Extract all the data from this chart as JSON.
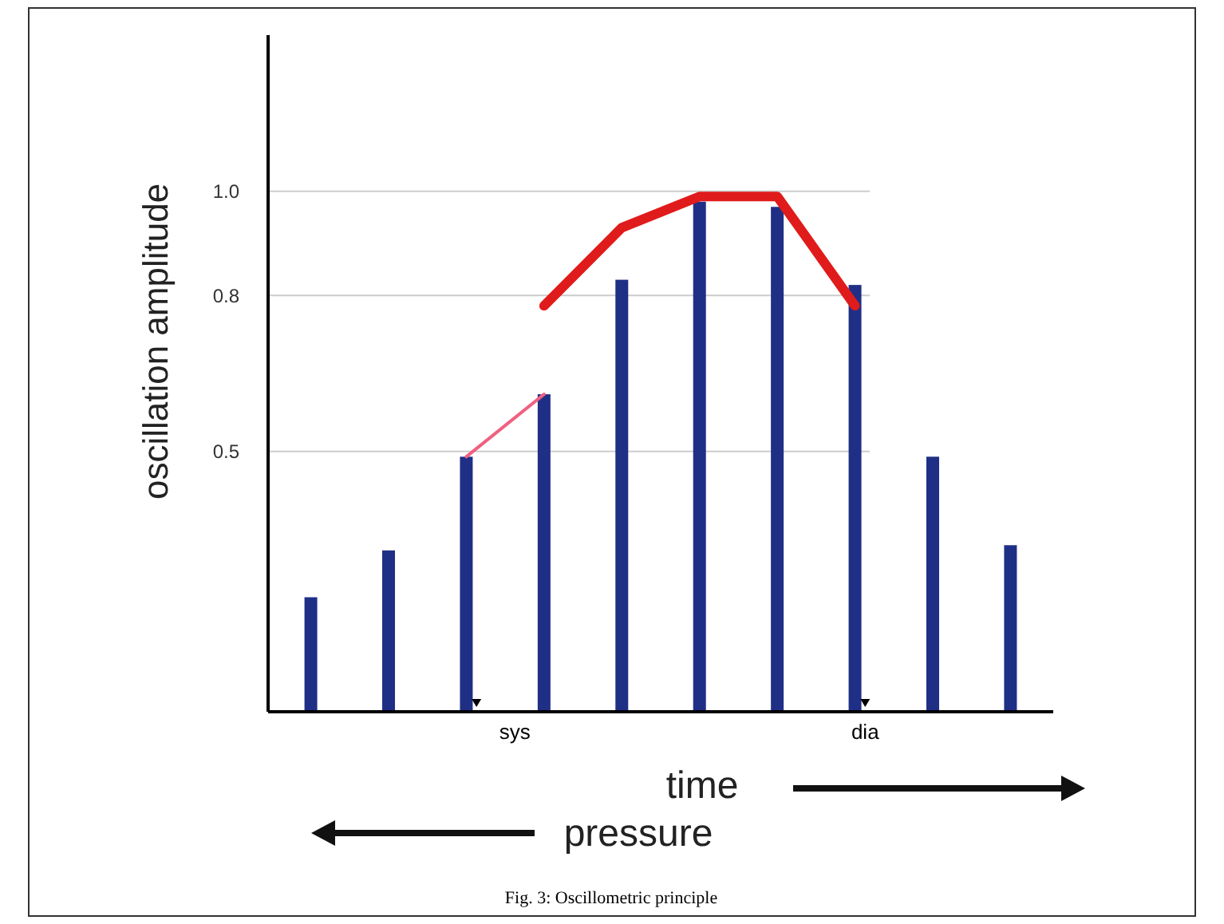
{
  "chart_data": {
    "type": "bar",
    "ylabel": "oscillation amplitude",
    "categories": [
      null,
      null,
      null,
      null,
      null,
      null,
      null,
      null,
      null,
      null
    ],
    "ylim": [
      0,
      1.3
    ],
    "yticks": [
      0.5,
      0.8,
      {
        "value": 1,
        "label": "1.0"
      }
    ],
    "grid": "y",
    "series": [
      {
        "color": "#1f2f86",
        "values": [
          0.22,
          0.31,
          0.49,
          0.61,
          0.83,
          0.98,
          0.97,
          0.82,
          0.49,
          0.32
        ]
      },
      {
        "type": "line",
        "color": "#e01b1b",
        "values": [
          null,
          null,
          null,
          0.78,
          0.93,
          0.99,
          0.99,
          0.78,
          null,
          null
        ]
      },
      {
        "type": "line",
        "color": "#f06080",
        "values": [
          null,
          null,
          0.49,
          0.61,
          null,
          null,
          null,
          null,
          null,
          null
        ]
      }
    ],
    "annotations": [
      "sys",
      "dia",
      "time",
      "pressure",
      "Fig. 3: Oscillometric principle"
    ]
  }
}
